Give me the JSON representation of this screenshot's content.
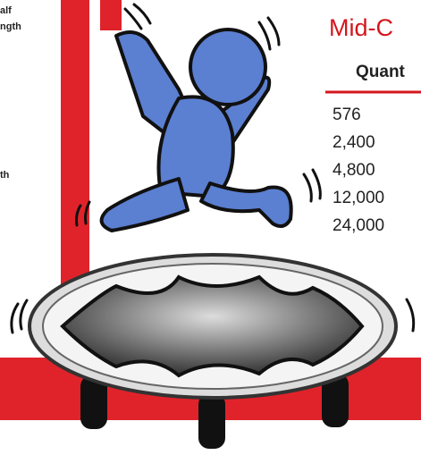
{
  "left_notes": [
    "alf",
    "ngth",
    "th"
  ],
  "section": {
    "title": "Mid-C",
    "table": {
      "header": "Quant",
      "rows": [
        "576",
        "2,400",
        "4,800",
        "12,000",
        "24,000"
      ]
    }
  }
}
